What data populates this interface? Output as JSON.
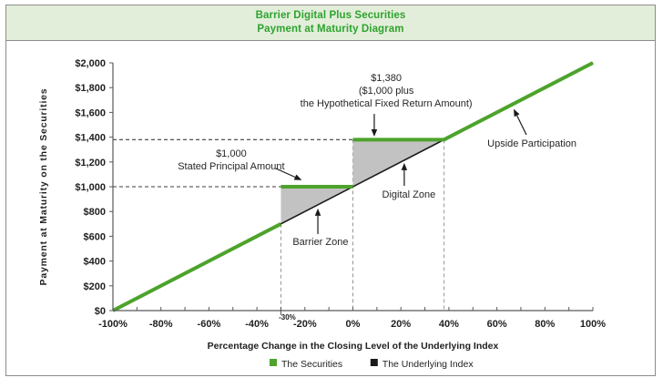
{
  "header": {
    "title_line1": "Barrier Digital Plus Securities",
    "title_line2": "Payment at Maturity Diagram"
  },
  "chart_data": {
    "type": "line",
    "title": "Barrier Digital Plus Securities Payment at Maturity Diagram",
    "xlabel": "Percentage Change in the Closing Level of the Underlying Index",
    "ylabel": "Payment at Maturity on the Securities",
    "xlim": [
      -100,
      100
    ],
    "ylim": [
      0,
      2000
    ],
    "grid": false,
    "legend_position": "bottom",
    "x_tick_labels": [
      "-100%",
      "-80%",
      "-60%",
      "-40%",
      "-20%",
      "0%",
      "20%",
      "40%",
      "60%",
      "80%",
      "100%"
    ],
    "x_tick_values": [
      -100,
      -80,
      -60,
      -40,
      -20,
      0,
      20,
      40,
      60,
      80,
      100
    ],
    "x_minor_tick_step": 10,
    "special_x_tick": {
      "value": -30,
      "label": "-30%"
    },
    "y_tick_labels": [
      "$0",
      "$200",
      "$400",
      "$600",
      "$800",
      "$1,000",
      "$1,200",
      "$1,400",
      "$1,600",
      "$1,800",
      "$2,000"
    ],
    "y_tick_values": [
      0,
      200,
      400,
      600,
      800,
      1000,
      1200,
      1400,
      1600,
      1800,
      2000
    ],
    "series": [
      {
        "name": "The Underlying Index",
        "color": "#1a1a1a",
        "width": 1.6,
        "segments": [
          [
            [
              -100,
              0
            ],
            [
              100,
              2000
            ]
          ]
        ]
      },
      {
        "name": "The Securities",
        "color": "#4da32b",
        "width": 4,
        "segments": [
          [
            [
              -100,
              0
            ],
            [
              -30,
              700
            ]
          ],
          [
            [
              -30,
              1000
            ],
            [
              0,
              1000
            ]
          ],
          [
            [
              0,
              1380
            ],
            [
              38,
              1380
            ],
            [
              100,
              2000
            ]
          ]
        ]
      }
    ],
    "shaded_zones": [
      {
        "name": "Barrier Zone",
        "color": "#c2c2c2",
        "points": [
          [
            -30,
            700
          ],
          [
            -30,
            1000
          ],
          [
            0,
            1000
          ]
        ]
      },
      {
        "name": "Digital Zone",
        "color": "#c2c2c2",
        "points": [
          [
            0,
            1000
          ],
          [
            0,
            1380
          ],
          [
            38,
            1380
          ]
        ]
      }
    ],
    "guides": {
      "horizontal": [
        {
          "y": 1000,
          "x_from": -100,
          "x_to": -30
        },
        {
          "y": 1380,
          "x_from": -100,
          "x_to": 0
        }
      ],
      "vertical": [
        {
          "x": -30,
          "y_from": 0,
          "y_to": 700
        },
        {
          "x": 0,
          "y_from": 0,
          "y_to": 1380
        },
        {
          "x": 38,
          "y_from": 0,
          "y_to": 1380
        }
      ]
    },
    "annotations": [
      {
        "name": "fixed-return-callout",
        "text_lines": [
          "$1,380",
          "($1,000 plus",
          "the Hypothetical  Fixed  Return  Amount)"
        ],
        "label_x": 13.9,
        "label_y": 1853,
        "arrow": {
          "from_x": 8.9,
          "from_y": 1588,
          "to_x": 8.9,
          "to_y": 1404
        }
      },
      {
        "name": "principal-callout",
        "text_lines": [
          "$1,000",
          "Stated Principal Amount"
        ],
        "label_x": -50.7,
        "label_y": 1243,
        "arrow": {
          "from_x": -32.1,
          "from_y": 1147,
          "to_x": -21.3,
          "to_y": 1053
        }
      },
      {
        "name": "digital-zone-label",
        "text_lines": [
          "Digital Zone"
        ],
        "label_x": 23.3,
        "label_y": 912,
        "arrow": {
          "from_x": 21.4,
          "from_y": 1007,
          "to_x": 21.4,
          "to_y": 1192
        }
      },
      {
        "name": "barrier-zone-label",
        "text_lines": [
          "Barrier Zone"
        ],
        "label_x": -13.5,
        "label_y": 529,
        "arrow": {
          "from_x": -14.6,
          "from_y": 618,
          "to_x": -14.6,
          "to_y": 824
        }
      },
      {
        "name": "upside-participation-label",
        "text_lines": [
          "Upside Participation"
        ],
        "label_x": 74.6,
        "label_y": 1324,
        "arrow": {
          "from_x": 72.3,
          "from_y": 1419,
          "to_x": 67.0,
          "to_y": 1628
        }
      }
    ],
    "legend": [
      {
        "label": "The Securities",
        "color": "#4da32b"
      },
      {
        "label": "The Underlying Index",
        "color": "#1a1a1a"
      }
    ]
  },
  "colors": {
    "header_bg": "#e3eeda",
    "header_text": "#2ea32f",
    "frame_border": "#8c8c8c",
    "axis": "#595959",
    "tick_text": "#1f1f1f",
    "guide_h": "#3c3c3c",
    "guide_v": "#969696",
    "annotation_text": "#262626"
  }
}
